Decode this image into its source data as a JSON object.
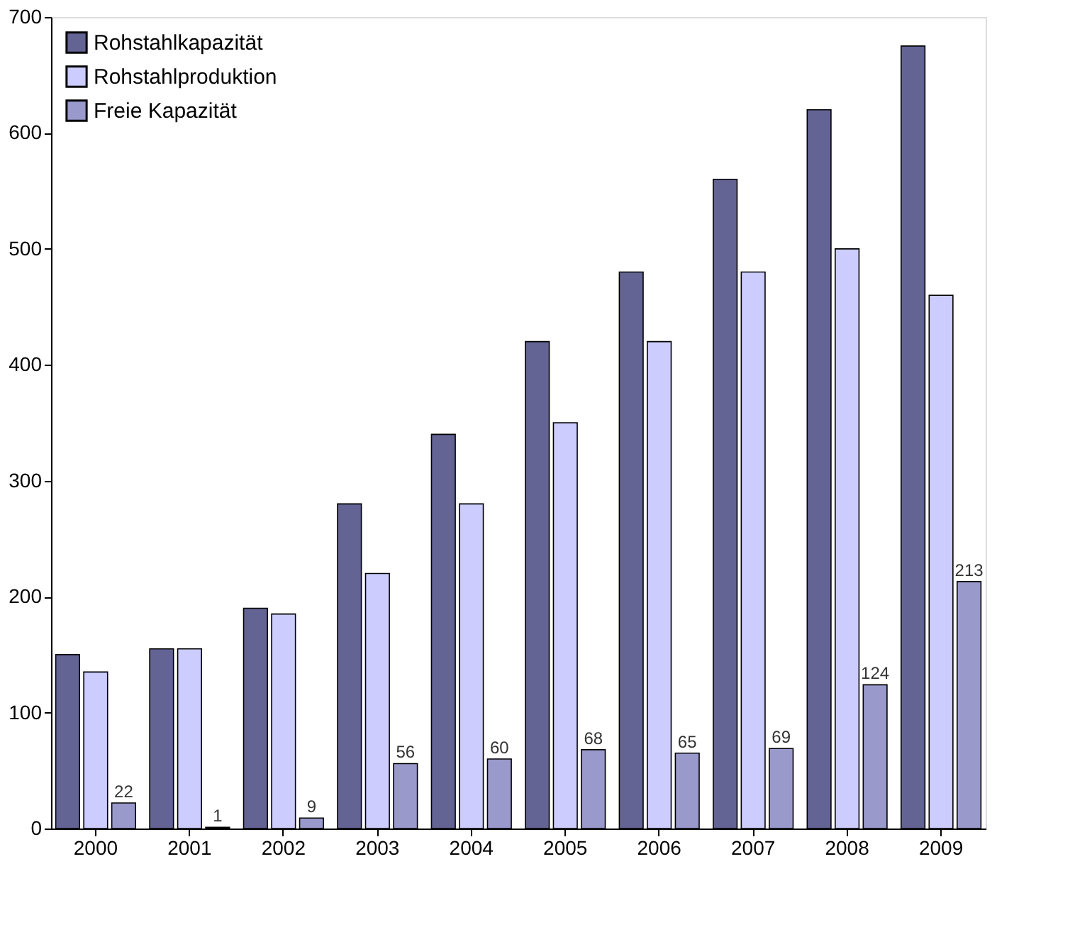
{
  "chart_data": {
    "type": "bar",
    "categories": [
      "2000",
      "2001",
      "2002",
      "2003",
      "2004",
      "2005",
      "2006",
      "2007",
      "2008",
      "2009"
    ],
    "series": [
      {
        "name": "Rohstahlkapazität",
        "color": "#636394",
        "values": [
          150,
          155,
          190,
          280,
          340,
          420,
          480,
          560,
          620,
          675
        ]
      },
      {
        "name": "Rohstahlproduktion",
        "color": "#ccccff",
        "values": [
          135,
          155,
          185,
          220,
          280,
          350,
          420,
          480,
          500,
          460
        ]
      },
      {
        "name": "Freie Kapazität",
        "color": "#9999cc",
        "values": [
          22,
          1,
          9,
          56,
          60,
          68,
          65,
          69,
          124,
          213
        ],
        "value_labels": [
          "22",
          "1",
          "9",
          "56",
          "60",
          "68",
          "65",
          "69",
          "124",
          "213"
        ]
      }
    ],
    "ylim": [
      0,
      700
    ],
    "yticks": [
      0,
      100,
      200,
      300,
      400,
      500,
      600,
      700
    ],
    "grid": false,
    "legend": "top left"
  }
}
